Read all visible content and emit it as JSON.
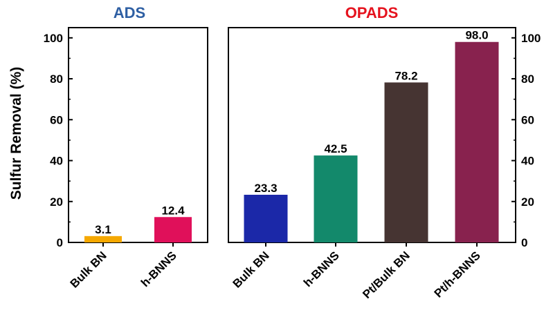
{
  "chart_data": [
    {
      "type": "bar",
      "title": "ADS",
      "title_color": "#2E5FA3",
      "ylabel": "Sulfur Removal (%)",
      "ylim": [
        0,
        105
      ],
      "yticks": [
        0,
        20,
        40,
        60,
        80,
        100
      ],
      "categories": [
        "Bulk BN",
        "h-BNNS"
      ],
      "values": [
        3.1,
        12.4
      ],
      "data_labels": [
        "3.1",
        "12.4"
      ],
      "colors": [
        "#F5A800",
        "#E0105A"
      ],
      "y_axis_side": "left"
    },
    {
      "type": "bar",
      "title": "OPADS",
      "title_color": "#E5131E",
      "ylabel": "",
      "ylim": [
        0,
        105
      ],
      "yticks": [
        0,
        20,
        40,
        60,
        80,
        100
      ],
      "categories": [
        "Bulk BN",
        "h-BNNS",
        "Pt/Bulk BN",
        "Pt/h-BNNS"
      ],
      "values": [
        23.3,
        42.5,
        78.2,
        98.0
      ],
      "data_labels": [
        "23.3",
        "42.5",
        "78.2",
        "98.0"
      ],
      "colors": [
        "#1B28A8",
        "#13896B",
        "#463432",
        "#88224E"
      ],
      "y_axis_side": "right"
    }
  ]
}
